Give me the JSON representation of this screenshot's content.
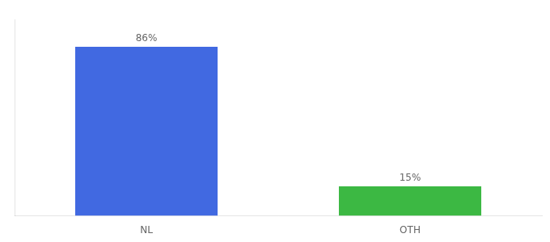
{
  "chart_data": {
    "type": "bar",
    "categories": [
      "NL",
      "OTH"
    ],
    "values": [
      86,
      15
    ],
    "value_labels": [
      "86%",
      "15%"
    ],
    "colors": [
      "#4169e1",
      "#3cb843"
    ],
    "ylim": [
      0,
      100
    ],
    "yticks": [],
    "grid": false,
    "data_labels": true,
    "tick_labels": "x"
  }
}
